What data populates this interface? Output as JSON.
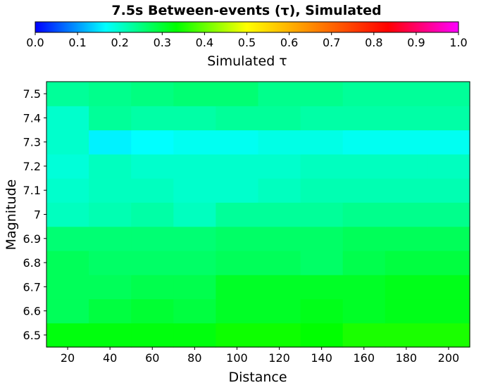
{
  "chart_data": {
    "type": "heatmap",
    "title": "7.5s Between-events (τ), Simulated",
    "xlabel": "Distance",
    "ylabel": "Magnitude",
    "colorbar": {
      "label": "Simulated τ",
      "range": [
        0.0,
        1.0
      ],
      "ticks": [
        "0.0",
        "0.1",
        "0.2",
        "0.3",
        "0.4",
        "0.5",
        "0.6",
        "0.7",
        "0.8",
        "0.9",
        "1.0"
      ],
      "colormap": "hsv (blue-cyan-green-yellow-red-magenta)"
    },
    "x": [
      "20",
      "40",
      "60",
      "80",
      "100",
      "120",
      "140",
      "160",
      "180",
      "200"
    ],
    "y": [
      "6.5",
      "6.6",
      "6.7",
      "6.8",
      "6.9",
      "7",
      "7.1",
      "7.2",
      "7.3",
      "7.4",
      "7.5"
    ],
    "values": [
      [
        0.39,
        0.39,
        0.39,
        0.39,
        0.41,
        0.41,
        0.4,
        0.42,
        0.42,
        0.42
      ],
      [
        0.33,
        0.35,
        0.36,
        0.35,
        0.37,
        0.37,
        0.38,
        0.37,
        0.38,
        0.38
      ],
      [
        0.33,
        0.33,
        0.34,
        0.34,
        0.37,
        0.37,
        0.37,
        0.37,
        0.38,
        0.38
      ],
      [
        0.33,
        0.32,
        0.32,
        0.32,
        0.33,
        0.33,
        0.32,
        0.34,
        0.35,
        0.35
      ],
      [
        0.31,
        0.31,
        0.31,
        0.31,
        0.32,
        0.32,
        0.32,
        0.33,
        0.33,
        0.33
      ],
      [
        0.25,
        0.26,
        0.27,
        0.25,
        0.28,
        0.28,
        0.28,
        0.29,
        0.29,
        0.29
      ],
      [
        0.24,
        0.25,
        0.25,
        0.24,
        0.24,
        0.25,
        0.26,
        0.26,
        0.26,
        0.26
      ],
      [
        0.23,
        0.25,
        0.24,
        0.24,
        0.24,
        0.24,
        0.25,
        0.25,
        0.25,
        0.25
      ],
      [
        0.24,
        0.19,
        0.2,
        0.21,
        0.21,
        0.22,
        0.22,
        0.21,
        0.21,
        0.21
      ],
      [
        0.24,
        0.28,
        0.27,
        0.27,
        0.28,
        0.28,
        0.27,
        0.27,
        0.27,
        0.27
      ],
      [
        0.28,
        0.29,
        0.3,
        0.31,
        0.31,
        0.29,
        0.29,
        0.28,
        0.28,
        0.28
      ]
    ],
    "grid": false,
    "legend": "colorbar-top"
  }
}
